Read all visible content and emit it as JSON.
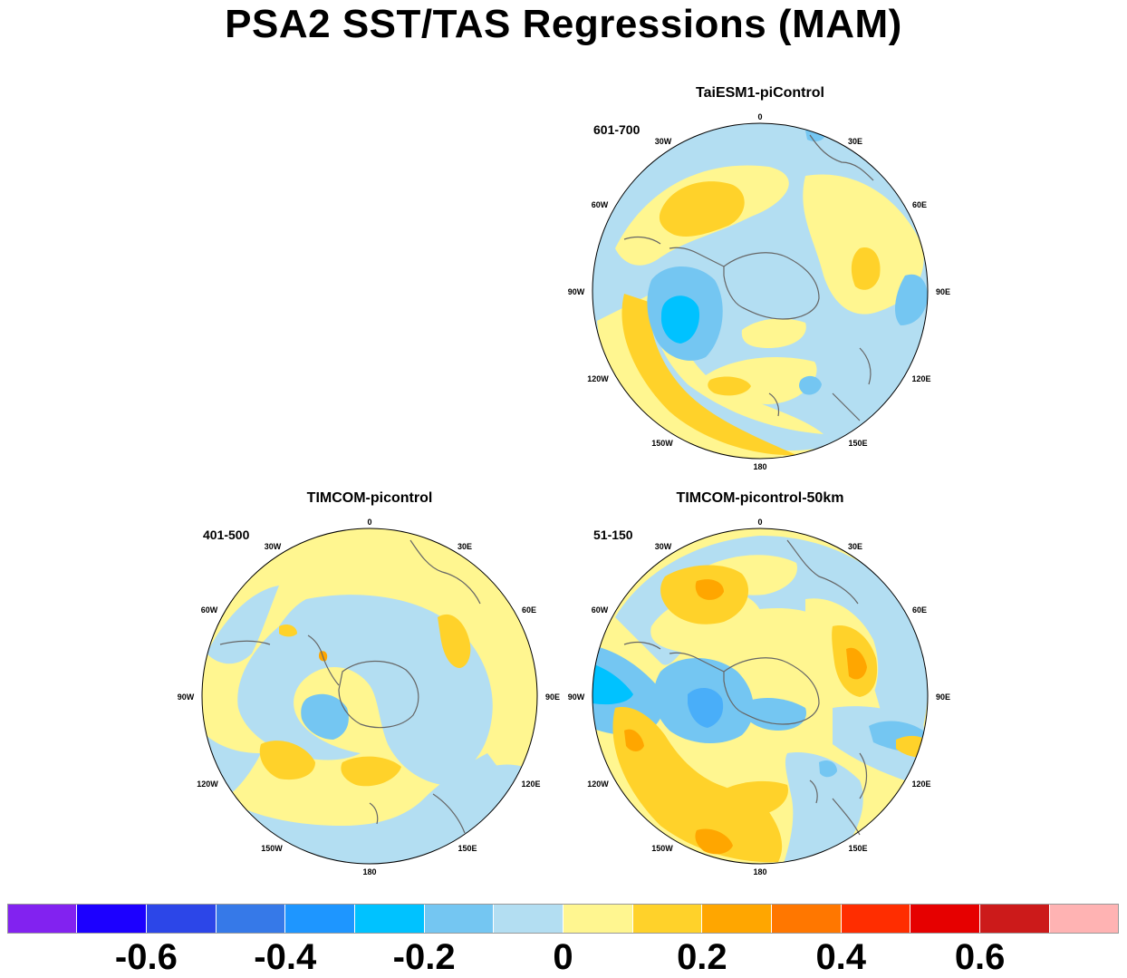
{
  "title": "PSA2 SST/TAS Regressions (MAM)",
  "panels": [
    {
      "id": "taiesm",
      "title": "TaiESM1-piControl",
      "period": "601-700"
    },
    {
      "id": "timcom",
      "title": "TIMCOM-picontrol",
      "period": "401-500"
    },
    {
      "id": "timcom50",
      "title": "TIMCOM-picontrol-50km",
      "period": "51-150"
    }
  ],
  "lon_labels": [
    "0",
    "30E",
    "60E",
    "90E",
    "120E",
    "150E",
    "180",
    "150W",
    "120W",
    "90W",
    "60W",
    "30W"
  ],
  "colorbar": {
    "colors": [
      "#8222f0",
      "#1c00ff",
      "#2c46e8",
      "#3679e8",
      "#1e96ff",
      "#00c2ff",
      "#74c6f2",
      "#b3def2",
      "#fff690",
      "#ffd22a",
      "#ffa600",
      "#ff7700",
      "#ff2d00",
      "#e60000",
      "#cc1a1a",
      "#ffb3b3"
    ],
    "labels": [
      "-0.6",
      "-0.4",
      "-0.2",
      "0",
      "0.2",
      "0.4",
      "0.6"
    ],
    "label_values": [
      -0.6,
      -0.4,
      -0.2,
      0,
      0.2,
      0.4,
      0.6
    ],
    "boundaries": [
      -0.7,
      -0.6,
      -0.5,
      -0.4,
      -0.3,
      -0.2,
      -0.1,
      0,
      0.1,
      0.2,
      0.3,
      0.4,
      0.5,
      0.6,
      0.7
    ]
  }
}
